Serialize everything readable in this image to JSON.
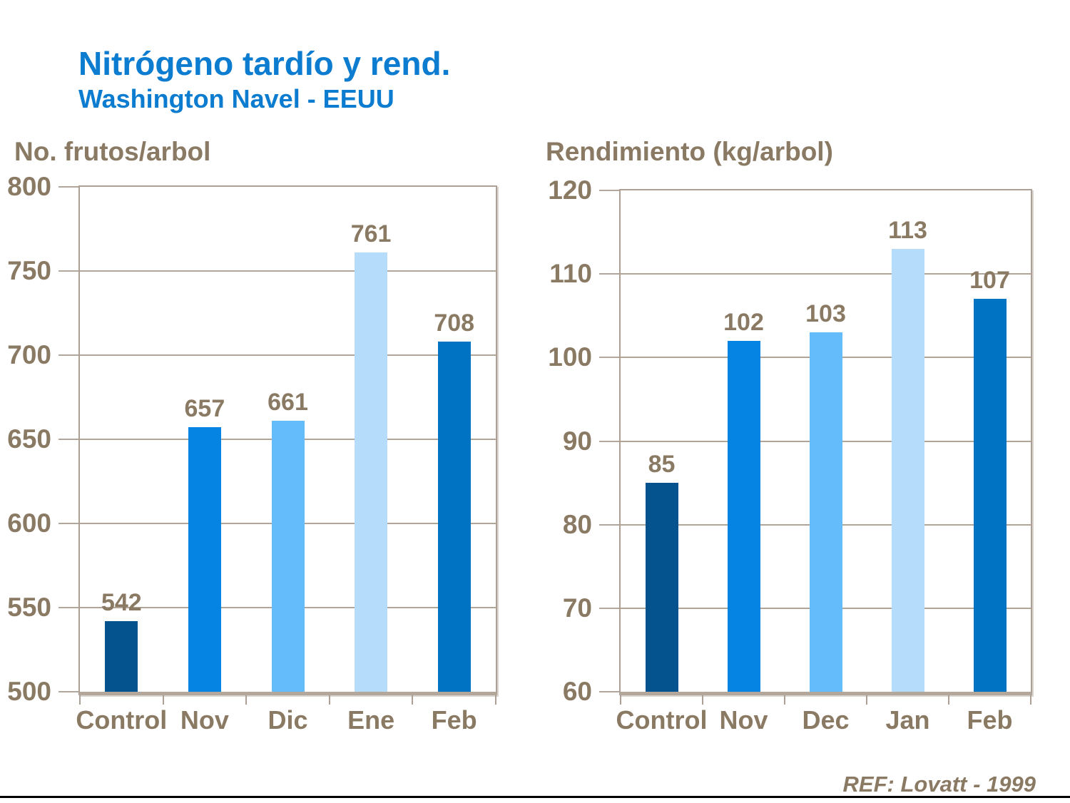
{
  "header": {
    "title": "Nitrógeno tardío y rend.",
    "subtitle": "Washington Navel - EEUU"
  },
  "footer": {
    "reference": "REF: Lovatt - 1999"
  },
  "colors": {
    "title_blue": "#0b7ccf",
    "text_brown": "#8a7a63",
    "frame_tan": "#aca094",
    "gridline_tan": "#b1a597",
    "bar_control": "#04538e",
    "bar_nov": "#0684e4",
    "bar_dic": "#65bcfb",
    "bar_ene": "#b6dcfb",
    "bar_feb": "#0173c3"
  },
  "chart_data": [
    {
      "type": "bar",
      "title": "No. frutos/arbol",
      "categories": [
        "Control",
        "Nov",
        "Dic",
        "Ene",
        "Feb"
      ],
      "values": [
        542,
        657,
        661,
        761,
        708
      ],
      "bar_colors": [
        "#04538e",
        "#0684e4",
        "#65bcfb",
        "#b6dcfb",
        "#0173c3"
      ],
      "ylim": [
        500,
        800
      ],
      "ytick_step": 50,
      "grid": true,
      "data_labels": true,
      "legend": "none"
    },
    {
      "type": "bar",
      "title": "Rendimiento (kg/arbol)",
      "categories": [
        "Control",
        "Nov",
        "Dec",
        "Jan",
        "Feb"
      ],
      "values": [
        85,
        102,
        103,
        113,
        107
      ],
      "bar_colors": [
        "#04538e",
        "#0684e4",
        "#65bcfb",
        "#b6dcfb",
        "#0173c3"
      ],
      "ylim": [
        60,
        120
      ],
      "ytick_step": 10,
      "grid": true,
      "data_labels": true,
      "legend": "none"
    }
  ]
}
